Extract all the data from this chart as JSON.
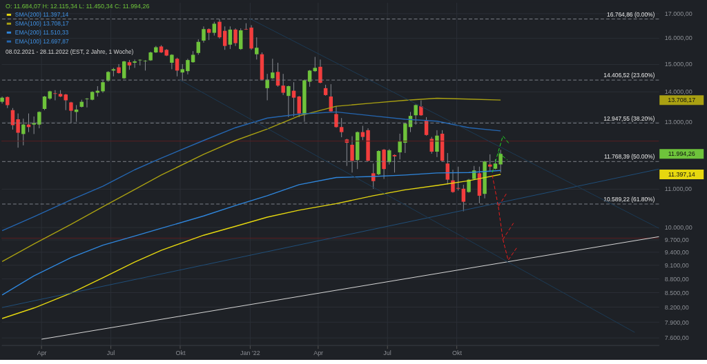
{
  "chart_data": {
    "type": "candlestick",
    "title": "O: 11.684,07  H: 12.115,34  L: 11.450,34  C: 11.994,26",
    "subtitle": "08.02.2021 - 28.11.2022   (EST, 2 Jahre, 1 Woche)",
    "x": [
      "2021-02-08",
      "2021-02-15",
      "2021-02-22",
      "2021-03-01",
      "2021-03-08",
      "2021-03-15",
      "2021-03-22",
      "2021-03-29",
      "2021-04-05",
      "2021-04-12",
      "2021-04-19",
      "2021-04-26",
      "2021-05-03",
      "2021-05-10",
      "2021-05-17",
      "2021-05-24",
      "2021-05-31",
      "2021-06-07",
      "2021-06-14",
      "2021-06-21",
      "2021-06-28",
      "2021-07-05",
      "2021-07-12",
      "2021-07-19",
      "2021-07-26",
      "2021-08-02",
      "2021-08-09",
      "2021-08-16",
      "2021-08-23",
      "2021-08-30",
      "2021-09-06",
      "2021-09-13",
      "2021-09-20",
      "2021-09-27",
      "2021-10-04",
      "2021-10-11",
      "2021-10-18",
      "2021-10-25",
      "2021-11-01",
      "2021-11-08",
      "2021-11-15",
      "2021-11-22",
      "2021-11-29",
      "2021-12-06",
      "2021-12-13",
      "2021-12-20",
      "2021-12-27",
      "2022-01-03",
      "2022-01-10",
      "2022-01-17",
      "2022-01-24",
      "2022-01-31",
      "2022-02-07",
      "2022-02-14",
      "2022-02-21",
      "2022-02-28",
      "2022-03-07",
      "2022-03-14",
      "2022-03-21",
      "2022-03-28",
      "2022-04-04",
      "2022-04-11",
      "2022-04-18",
      "2022-04-25",
      "2022-05-02",
      "2022-05-09",
      "2022-05-16",
      "2022-05-23",
      "2022-05-30",
      "2022-06-06",
      "2022-06-13",
      "2022-06-20",
      "2022-06-27",
      "2022-07-04",
      "2022-07-11",
      "2022-07-18",
      "2022-07-25",
      "2022-08-01",
      "2022-08-08",
      "2022-08-15",
      "2022-08-22",
      "2022-08-29",
      "2022-09-05",
      "2022-09-12",
      "2022-09-19",
      "2022-09-26",
      "2022-10-03",
      "2022-10-10",
      "2022-10-17",
      "2022-10-24",
      "2022-10-31",
      "2022-11-07",
      "2022-11-14",
      "2022-11-21",
      "2022-11-28"
    ],
    "ohlc": [
      [
        13650,
        13830,
        13590,
        13790
      ],
      [
        13810,
        13830,
        13440,
        13540
      ],
      [
        13370,
        13440,
        12740,
        12880
      ],
      [
        13070,
        13260,
        12180,
        12640
      ],
      [
        12600,
        13090,
        12250,
        12900
      ],
      [
        12900,
        13260,
        12660,
        12820
      ],
      [
        12900,
        13160,
        12600,
        12950
      ],
      [
        12900,
        13330,
        12780,
        13310
      ],
      [
        13410,
        13850,
        13370,
        13830
      ],
      [
        13760,
        14030,
        13720,
        14010
      ],
      [
        13940,
        14050,
        13700,
        13920
      ],
      [
        13920,
        14050,
        13810,
        13830
      ],
      [
        13900,
        13920,
        13370,
        13700
      ],
      [
        13630,
        13650,
        12950,
        13350
      ],
      [
        13310,
        13540,
        12990,
        13390
      ],
      [
        13480,
        13720,
        13460,
        13650
      ],
      [
        13740,
        13780,
        13460,
        13760
      ],
      [
        13720,
        14010,
        13700,
        13990
      ],
      [
        13960,
        14190,
        13830,
        14030
      ],
      [
        14010,
        14420,
        13960,
        14330
      ],
      [
        14380,
        14730,
        14350,
        14700
      ],
      [
        14750,
        14850,
        14540,
        14800
      ],
      [
        14870,
        14990,
        14640,
        14660
      ],
      [
        14470,
        15110,
        14450,
        15090
      ],
      [
        15060,
        15140,
        14780,
        14940
      ],
      [
        15040,
        15160,
        14850,
        15090
      ],
      [
        15130,
        15170,
        14940,
        15150
      ],
      [
        15090,
        15140,
        14750,
        15110
      ],
      [
        15130,
        15460,
        15110,
        15430
      ],
      [
        15430,
        15680,
        15410,
        15630
      ],
      [
        15660,
        15710,
        15410,
        15430
      ],
      [
        15530,
        15560,
        15290,
        15310
      ],
      [
        15040,
        15360,
        14800,
        15340
      ],
      [
        15190,
        15230,
        14540,
        14750
      ],
      [
        14680,
        14990,
        14380,
        14800
      ],
      [
        14730,
        15190,
        14610,
        15140
      ],
      [
        15060,
        15480,
        15040,
        15340
      ],
      [
        15410,
        15940,
        15340,
        15840
      ],
      [
        15890,
        16460,
        15810,
        16350
      ],
      [
        16350,
        16380,
        15910,
        16200
      ],
      [
        16200,
        16650,
        16090,
        16570
      ],
      [
        16650,
        16750,
        15970,
        16020
      ],
      [
        16280,
        16460,
        15530,
        15680
      ],
      [
        15730,
        16460,
        15560,
        16330
      ],
      [
        16330,
        16380,
        15680,
        15790
      ],
      [
        15560,
        16380,
        15530,
        16300
      ],
      [
        16350,
        16590,
        16320,
        16330
      ],
      [
        16410,
        16510,
        15530,
        15580
      ],
      [
        15360,
        16020,
        15160,
        15610
      ],
      [
        15360,
        15430,
        14400,
        14420
      ],
      [
        14120,
        14630,
        13700,
        14420
      ],
      [
        14470,
        15190,
        14450,
        14680
      ],
      [
        14700,
        15040,
        14170,
        14210
      ],
      [
        14210,
        14630,
        13880,
        13960
      ],
      [
        13850,
        14210,
        13140,
        14190
      ],
      [
        14030,
        14330,
        13160,
        13790
      ],
      [
        13830,
        13850,
        13140,
        13260
      ],
      [
        13220,
        14420,
        12990,
        14400
      ],
      [
        14350,
        14770,
        14170,
        14750
      ],
      [
        14730,
        15260,
        14700,
        14850
      ],
      [
        14890,
        15160,
        14290,
        14310
      ],
      [
        14120,
        14240,
        13860,
        13880
      ],
      [
        13830,
        14260,
        13310,
        13330
      ],
      [
        13240,
        13500,
        12800,
        12820
      ],
      [
        12820,
        13110,
        12500,
        12660
      ],
      [
        12430,
        12450,
        11640,
        12330
      ],
      [
        12270,
        12530,
        11450,
        11790
      ],
      [
        11810,
        12680,
        11550,
        12660
      ],
      [
        12660,
        12860,
        12410,
        12510
      ],
      [
        12720,
        12780,
        11770,
        11790
      ],
      [
        11430,
        11710,
        11000,
        11210
      ],
      [
        11400,
        12100,
        11380,
        12080
      ],
      [
        12120,
        12140,
        11270,
        11550
      ],
      [
        11750,
        12140,
        11680,
        12100
      ],
      [
        11960,
        11980,
        11450,
        11920
      ],
      [
        12040,
        12610,
        11830,
        12370
      ],
      [
        12330,
        12950,
        12020,
        12930
      ],
      [
        12820,
        13310,
        12660,
        13180
      ],
      [
        13200,
        13560,
        12900,
        13540
      ],
      [
        13500,
        13700,
        13180,
        13200
      ],
      [
        13030,
        13140,
        12550,
        12570
      ],
      [
        12450,
        12510,
        12000,
        12060
      ],
      [
        12060,
        12720,
        11900,
        12550
      ],
      [
        12610,
        12720,
        11770,
        11790
      ],
      [
        11710,
        12020,
        11120,
        11250
      ],
      [
        11230,
        11530,
        10890,
        10910
      ],
      [
        11020,
        11620,
        10950,
        11000
      ],
      [
        11000,
        11110,
        10400,
        10650
      ],
      [
        10910,
        11270,
        10890,
        11250
      ],
      [
        11270,
        11640,
        11250,
        11510
      ],
      [
        11430,
        11620,
        10610,
        10810
      ],
      [
        10860,
        11790,
        10740,
        11770
      ],
      [
        11680,
        11980,
        11470,
        11620
      ],
      [
        11560,
        11830,
        11540,
        11710
      ],
      [
        11684.07,
        12115.34,
        11450.34,
        11994.26
      ]
    ],
    "colors": [
      "#6ec33b",
      "#f23d3d",
      "#f23d3d",
      "#f23d3d",
      "#6ec33b",
      "#f23d3d",
      "#6ec33b",
      "#6ec33b",
      "#6ec33b",
      "#6ec33b",
      "#f23d3d",
      "#f23d3d",
      "#f23d3d",
      "#f23d3d",
      "#6ec33b",
      "#6ec33b",
      "#6ec33b",
      "#6ec33b",
      "#6ec33b",
      "#6ec33b",
      "#6ec33b",
      "#6ec33b",
      "#f23d3d",
      "#6ec33b",
      "#f23d3d",
      "#6ec33b",
      "#6ec33b",
      "#6ec33b",
      "#6ec33b",
      "#6ec33b",
      "#f23d3d",
      "#f23d3d",
      "#6ec33b",
      "#f23d3d",
      "#6ec33b",
      "#6ec33b",
      "#6ec33b",
      "#6ec33b",
      "#6ec33b",
      "#f23d3d",
      "#6ec33b",
      "#f23d3d",
      "#f23d3d",
      "#6ec33b",
      "#f23d3d",
      "#6ec33b",
      "#f23d3d",
      "#f23d3d",
      "#6ec33b",
      "#f23d3d",
      "#6ec33b",
      "#6ec33b",
      "#f23d3d",
      "#f23d3d",
      "#6ec33b",
      "#f23d3d",
      "#f23d3d",
      "#6ec33b",
      "#6ec33b",
      "#6ec33b",
      "#f23d3d",
      "#f23d3d",
      "#f23d3d",
      "#f23d3d",
      "#f23d3d",
      "#f23d3d",
      "#f23d3d",
      "#6ec33b",
      "#f23d3d",
      "#f23d3d",
      "#f23d3d",
      "#6ec33b",
      "#f23d3d",
      "#6ec33b",
      "#f23d3d",
      "#6ec33b",
      "#6ec33b",
      "#6ec33b",
      "#6ec33b",
      "#f23d3d",
      "#f23d3d",
      "#f23d3d",
      "#6ec33b",
      "#f23d3d",
      "#f23d3d",
      "#f23d3d",
      "#f23d3d",
      "#f23d3d",
      "#6ec33b",
      "#6ec33b",
      "#f23d3d",
      "#6ec33b",
      "#f23d3d",
      "#6ec33b",
      "#6ec33b"
    ],
    "series": [
      {
        "type": "line",
        "name": "SMA(200)  11.397,14",
        "color": "#e6d80f",
        "x": [
          "2021-02-08",
          "2021-03-22",
          "2021-05-10",
          "2021-06-21",
          "2021-08-02",
          "2021-09-06",
          "2021-11-01",
          "2021-12-13",
          "2022-01-24",
          "2022-03-07",
          "2022-04-25",
          "2022-06-13",
          "2022-07-25",
          "2022-09-05",
          "2022-10-17",
          "2022-11-28"
        ],
        "values": [
          7970,
          8180,
          8490,
          8820,
          9170,
          9440,
          9800,
          10020,
          10250,
          10430,
          10600,
          10810,
          10970,
          11090,
          11220,
          11397.14
        ]
      },
      {
        "type": "line",
        "name": "SMA(100)  13.708,17",
        "color": "#a9a012",
        "x": [
          "2021-02-08",
          "2021-03-22",
          "2021-05-10",
          "2021-06-21",
          "2021-08-02",
          "2021-09-06",
          "2021-11-01",
          "2021-12-13",
          "2022-01-24",
          "2022-03-07",
          "2022-04-25",
          "2022-06-13",
          "2022-07-25",
          "2022-09-05",
          "2022-10-17",
          "2022-11-28"
        ],
        "values": [
          9180,
          9590,
          10070,
          10520,
          10980,
          11380,
          11980,
          12400,
          12760,
          13180,
          13500,
          13610,
          13700,
          13770,
          13740,
          13708.17
        ]
      },
      {
        "type": "line",
        "name": "EMA(200)  11.510,33",
        "color": "#2f86dc",
        "x": [
          "2021-02-08",
          "2021-03-22",
          "2021-05-10",
          "2021-06-21",
          "2021-08-02",
          "2021-09-06",
          "2021-11-01",
          "2021-12-13",
          "2022-01-24",
          "2022-03-07",
          "2022-04-25",
          "2022-06-13",
          "2022-07-25",
          "2022-09-05",
          "2022-10-17",
          "2022-11-28"
        ],
        "values": [
          8450,
          8860,
          9270,
          9560,
          9780,
          9970,
          10280,
          10550,
          10810,
          11110,
          11310,
          11340,
          11380,
          11440,
          11450,
          11510.33
        ]
      },
      {
        "type": "line",
        "name": "EMA(100)  12.697,87",
        "color": "#2566b0",
        "x": [
          "2021-02-08",
          "2021-03-22",
          "2021-05-10",
          "2021-06-21",
          "2021-08-02",
          "2021-09-06",
          "2021-11-01",
          "2021-12-13",
          "2022-01-24",
          "2022-03-07",
          "2022-04-25",
          "2022-06-13",
          "2022-07-25",
          "2022-09-05",
          "2022-10-17",
          "2022-11-28"
        ],
        "values": [
          9910,
          10260,
          10700,
          11070,
          11530,
          11870,
          12400,
          12800,
          13110,
          13240,
          13310,
          13180,
          13070,
          13010,
          12800,
          12697.87
        ]
      },
      {
        "type": "line",
        "color": "#d9d9d9",
        "x": [
          "2021-04-01",
          "2023-06-25"
        ],
        "values": [
          7570,
          9765
        ]
      },
      {
        "type": "line",
        "color": "#1f4f7a",
        "x": [
          "2021-02-08",
          "2023-06-25"
        ],
        "values": [
          8190,
          11550
        ]
      },
      {
        "type": "line",
        "color": "#1c3a55",
        "x": [
          "2022-01-01",
          "2023-06-25"
        ],
        "values": [
          16780,
          9970
        ]
      },
      {
        "type": "line",
        "color": "#1c3a55",
        "x": [
          "2021-09-30",
          "2023-05-24"
        ],
        "values": [
          14420,
          7700
        ]
      },
      {
        "type": "line",
        "color": "#22dd22",
        "line_style": "dashed",
        "x": [
          "2022-11-17",
          "2022-12-01",
          "2022-12-10"
        ],
        "values": [
          11450,
          12540,
          12280
        ]
      },
      {
        "type": "line",
        "color": "#22dd22",
        "line_style": "dashed",
        "x": [
          "2022-11-25",
          "2022-12-07"
        ],
        "values": [
          12040,
          11810
        ]
      },
      {
        "type": "line",
        "color": "#ee1c1c",
        "line_style": "dashed",
        "x": [
          "2022-11-17",
          "2022-11-25",
          "2022-12-06"
        ],
        "values": [
          11380,
          10520,
          10880
        ]
      },
      {
        "type": "line",
        "color": "#ee1c1c",
        "line_style": "dashed",
        "x": [
          "2022-11-25",
          "2022-12-01",
          "2022-12-15"
        ],
        "values": [
          10520,
          9700,
          10100
        ]
      },
      {
        "type": "line",
        "color": "#ee1c1c",
        "line_style": "dashed",
        "x": [
          "2022-12-01",
          "2022-12-08",
          "2022-12-20"
        ],
        "values": [
          9700,
          9210,
          9520
        ]
      }
    ],
    "ref_lines": [
      {
        "axis": "y",
        "value": 16764.86,
        "label": "16.764,86 (0.00%)",
        "color": "#7d8189",
        "line_style": "dashed"
      },
      {
        "axis": "y",
        "value": 14406.52,
        "label": "14.406,52 (23.60%)",
        "color": "#7d8189",
        "line_style": "dashed"
      },
      {
        "axis": "y",
        "value": 12947.55,
        "label": "12.947,55 (38.20%)",
        "color": "#7d8189",
        "line_style": "dashed"
      },
      {
        "axis": "y",
        "value": 11768.39,
        "label": "11.768,39 (50.00%)",
        "color": "#7d8189",
        "line_style": "dashed"
      },
      {
        "axis": "y",
        "value": 10589.22,
        "label": "10.589,22 (61.80%)",
        "color": "#7d8189",
        "line_style": "dashed"
      },
      {
        "axis": "y",
        "value": 12380,
        "color": "#5a1e22",
        "line_style": "solid"
      },
      {
        "axis": "y",
        "value": 9730,
        "color": "#5a1e22",
        "line_style": "solid"
      }
    ],
    "annotations": [
      "13.708,17",
      "11.994,26",
      "11.397,14"
    ],
    "xlim": [
      "2021-02-07",
      "2023-06-25"
    ],
    "xticks": [
      {
        "value": "2021-04-01",
        "label": "Apr"
      },
      {
        "value": "2021-07-01",
        "label": "Jul"
      },
      {
        "value": "2021-10-01",
        "label": "Okt"
      },
      {
        "value": "2022-01-01",
        "label": "Jan '22"
      },
      {
        "value": "2022-04-01",
        "label": "Apr"
      },
      {
        "value": "2022-07-01",
        "label": "Jul"
      },
      {
        "value": "2022-10-01",
        "label": "Okt"
      }
    ],
    "ylim": [
      7460,
      17470
    ],
    "yticks": [
      {
        "value": 7600,
        "label": "7.600,00"
      },
      {
        "value": 7900,
        "label": "7.900,00"
      },
      {
        "value": 8200,
        "label": "8.200,00"
      },
      {
        "value": 8500,
        "label": "8.500,00"
      },
      {
        "value": 8800,
        "label": "8.800,00"
      },
      {
        "value": 9100,
        "label": "9.100,00"
      },
      {
        "value": 9400,
        "label": "9.400,00"
      },
      {
        "value": 9700,
        "label": "9.700,00"
      },
      {
        "value": 10000,
        "label": "10.000,00"
      },
      {
        "value": 11000,
        "label": "11.000,00"
      },
      {
        "value": 13000,
        "label": "13.000,00"
      },
      {
        "value": 14000,
        "label": "14.000,00"
      },
      {
        "value": 15000,
        "label": "15.000,00"
      },
      {
        "value": 16000,
        "label": "16.000,00"
      },
      {
        "value": 17000,
        "label": "17.000,00"
      }
    ],
    "log": "y",
    "grid": true,
    "legend": "top left"
  }
}
